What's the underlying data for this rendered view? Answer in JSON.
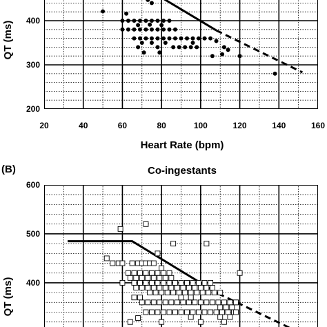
{
  "chart_data": [
    {
      "panel": "A",
      "type": "scatter",
      "title": "",
      "xlabel": "Heart Rate (bpm)",
      "ylabel": "QT (ms)",
      "xlim": [
        20,
        160
      ],
      "ylim": [
        200,
        450
      ],
      "x_ticks": [
        "20",
        "40",
        "60",
        "80",
        "100",
        "120",
        "140",
        "160"
      ],
      "y_ticks": [
        "200",
        "300",
        "400"
      ],
      "grid": true,
      "marker": "filled-circle",
      "points": [
        [
          50,
          421
        ],
        [
          62,
          416
        ],
        [
          73,
          447
        ],
        [
          75,
          440
        ],
        [
          60,
          400
        ],
        [
          63,
          400
        ],
        [
          66,
          400
        ],
        [
          69,
          400
        ],
        [
          72,
          400
        ],
        [
          75,
          400
        ],
        [
          78,
          400
        ],
        [
          81,
          400
        ],
        [
          84,
          400
        ],
        [
          60,
          380
        ],
        [
          63,
          380
        ],
        [
          66,
          380
        ],
        [
          69,
          380
        ],
        [
          72,
          380
        ],
        [
          75,
          380
        ],
        [
          78,
          380
        ],
        [
          81,
          380
        ],
        [
          84,
          380
        ],
        [
          87,
          380
        ],
        [
          68,
          390
        ],
        [
          74,
          391
        ],
        [
          80,
          390
        ],
        [
          66,
          360
        ],
        [
          69,
          360
        ],
        [
          72,
          360
        ],
        [
          75,
          360
        ],
        [
          78,
          360
        ],
        [
          81,
          360
        ],
        [
          84,
          360
        ],
        [
          87,
          360
        ],
        [
          90,
          360
        ],
        [
          93,
          360
        ],
        [
          96,
          360
        ],
        [
          99,
          360
        ],
        [
          102,
          360
        ],
        [
          105,
          360
        ],
        [
          70,
          350
        ],
        [
          75,
          350
        ],
        [
          82,
          350
        ],
        [
          96,
          350
        ],
        [
          68,
          340
        ],
        [
          78,
          340
        ],
        [
          86,
          340
        ],
        [
          89,
          340
        ],
        [
          92,
          340
        ],
        [
          95,
          340
        ],
        [
          98,
          340
        ],
        [
          71,
          328
        ],
        [
          79,
          328
        ],
        [
          108,
          354
        ],
        [
          112,
          340
        ],
        [
          114,
          334
        ],
        [
          106,
          320
        ],
        [
          111,
          324
        ],
        [
          120,
          320
        ],
        [
          138,
          280
        ]
      ],
      "fit_line_solid": [
        [
          79,
          455
        ],
        [
          108,
          378
        ]
      ],
      "fit_line_dashed": [
        [
          108,
          378
        ],
        [
          152,
          283
        ]
      ],
      "colors": {
        "marker": "#000000",
        "line": "#000000",
        "grid": "#000000"
      }
    },
    {
      "panel": "B",
      "type": "scatter",
      "panel_tag": "(B)",
      "title": "Co-ingestants",
      "xlabel": "",
      "ylabel": "QT (ms)",
      "xlim": [
        20,
        160
      ],
      "ylim": [
        290,
        600
      ],
      "y_ticks": [
        "300",
        "400",
        "500",
        "600"
      ],
      "grid": true,
      "marker": "open-square",
      "points": [
        [
          59,
          510
        ],
        [
          72,
          520
        ],
        [
          52,
          450
        ],
        [
          55,
          440
        ],
        [
          58,
          440
        ],
        [
          60,
          440
        ],
        [
          60,
          400
        ],
        [
          65,
          440
        ],
        [
          68,
          440
        ],
        [
          70,
          440
        ],
        [
          72,
          440
        ],
        [
          74,
          440
        ],
        [
          76,
          440
        ],
        [
          63,
          420
        ],
        [
          66,
          420
        ],
        [
          69,
          420
        ],
        [
          72,
          420
        ],
        [
          75,
          420
        ],
        [
          78,
          420
        ],
        [
          81,
          420
        ],
        [
          84,
          420
        ],
        [
          64,
          410
        ],
        [
          67,
          410
        ],
        [
          70,
          410
        ],
        [
          73,
          410
        ],
        [
          76,
          410
        ],
        [
          79,
          410
        ],
        [
          82,
          410
        ],
        [
          85,
          410
        ],
        [
          66,
          400
        ],
        [
          69,
          400
        ],
        [
          72,
          400
        ],
        [
          75,
          400
        ],
        [
          78,
          400
        ],
        [
          81,
          400
        ],
        [
          84,
          400
        ],
        [
          87,
          400
        ],
        [
          90,
          400
        ],
        [
          93,
          400
        ],
        [
          96,
          400
        ],
        [
          99,
          400
        ],
        [
          102,
          400
        ],
        [
          105,
          400
        ],
        [
          67,
          390
        ],
        [
          70,
          390
        ],
        [
          73,
          390
        ],
        [
          76,
          390
        ],
        [
          79,
          390
        ],
        [
          82,
          390
        ],
        [
          85,
          390
        ],
        [
          88,
          390
        ],
        [
          91,
          390
        ],
        [
          94,
          390
        ],
        [
          97,
          390
        ],
        [
          100,
          390
        ],
        [
          103,
          390
        ],
        [
          106,
          390
        ],
        [
          74,
          380
        ],
        [
          77,
          380
        ],
        [
          80,
          380
        ],
        [
          83,
          380
        ],
        [
          86,
          380
        ],
        [
          89,
          380
        ],
        [
          92,
          380
        ],
        [
          95,
          380
        ],
        [
          98,
          380
        ],
        [
          101,
          380
        ],
        [
          104,
          380
        ],
        [
          107,
          380
        ],
        [
          110,
          380
        ],
        [
          70,
          360
        ],
        [
          73,
          360
        ],
        [
          76,
          360
        ],
        [
          79,
          360
        ],
        [
          82,
          360
        ],
        [
          85,
          360
        ],
        [
          88,
          360
        ],
        [
          91,
          360
        ],
        [
          94,
          360
        ],
        [
          97,
          360
        ],
        [
          100,
          360
        ],
        [
          103,
          360
        ],
        [
          106,
          360
        ],
        [
          109,
          360
        ],
        [
          112,
          360
        ],
        [
          115,
          360
        ],
        [
          118,
          360
        ],
        [
          72,
          340
        ],
        [
          75,
          340
        ],
        [
          78,
          340
        ],
        [
          81,
          340
        ],
        [
          84,
          340
        ],
        [
          87,
          340
        ],
        [
          90,
          340
        ],
        [
          93,
          340
        ],
        [
          96,
          340
        ],
        [
          99,
          340
        ],
        [
          102,
          340
        ],
        [
          105,
          340
        ],
        [
          108,
          340
        ],
        [
          111,
          340
        ],
        [
          114,
          340
        ],
        [
          117,
          340
        ],
        [
          95,
          330
        ],
        [
          110,
          330
        ],
        [
          115,
          330
        ],
        [
          64,
          320
        ],
        [
          80,
          320
        ],
        [
          100,
          320
        ],
        [
          112,
          320
        ],
        [
          116,
          300
        ],
        [
          66,
          370
        ],
        [
          69,
          370
        ],
        [
          90,
          370
        ],
        [
          95,
          370
        ],
        [
          110,
          350
        ],
        [
          113,
          350
        ],
        [
          116,
          350
        ],
        [
          118,
          340
        ],
        [
          118,
          360
        ],
        [
          78,
          460
        ],
        [
          80,
          430
        ],
        [
          86,
          480
        ],
        [
          95,
          370
        ],
        [
          103,
          480
        ],
        [
          120,
          420
        ],
        [
          68,
          328
        ],
        [
          135,
          300
        ],
        [
          150,
          300
        ]
      ],
      "fit_line_solid": [
        [
          32,
          485
        ],
        [
          65,
          485
        ],
        [
          109,
          378
        ]
      ],
      "fit_line_dashed": [
        [
          109,
          378
        ],
        [
          156,
          288
        ]
      ],
      "colors": {
        "marker": "#000000",
        "line": "#000000",
        "grid": "#000000"
      }
    }
  ]
}
